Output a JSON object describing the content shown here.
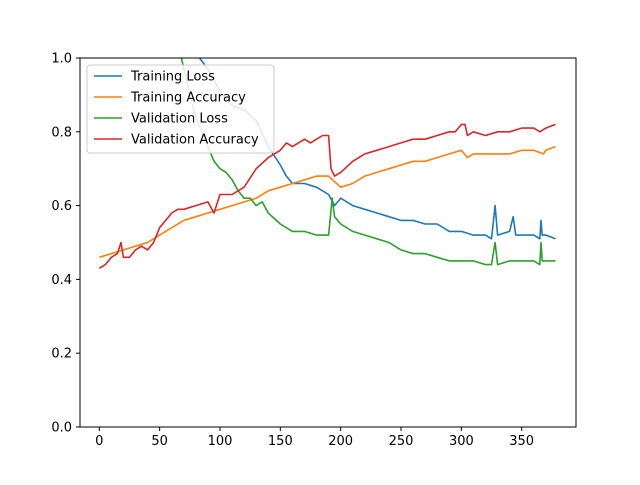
{
  "chart_data": {
    "type": "line",
    "title": "",
    "xlabel": "",
    "ylabel": "",
    "xlim": [
      -16,
      395
    ],
    "ylim": [
      0.0,
      1.0
    ],
    "xticks": [
      0,
      50,
      100,
      150,
      200,
      250,
      300,
      350
    ],
    "yticks": [
      0.0,
      0.2,
      0.4,
      0.6,
      0.8,
      1.0
    ],
    "xtick_labels": [
      "0",
      "50",
      "100",
      "150",
      "200",
      "250",
      "300",
      "350"
    ],
    "ytick_labels": [
      "0.0",
      "0.2",
      "0.4",
      "0.6",
      "0.8",
      "1.0"
    ],
    "grid": false,
    "legend_position": "upper-left",
    "series": [
      {
        "name": "Training Loss",
        "color": "#1f77b4",
        "x": [
          83,
          90,
          100,
          110,
          120,
          130,
          140,
          150,
          155,
          160,
          170,
          180,
          190,
          195,
          200,
          210,
          220,
          230,
          240,
          250,
          260,
          270,
          280,
          290,
          300,
          310,
          320,
          325,
          328,
          330,
          340,
          343,
          345,
          350,
          360,
          365,
          366,
          367,
          370,
          378
        ],
        "y": [
          1.0,
          0.97,
          0.91,
          0.87,
          0.86,
          0.83,
          0.76,
          0.71,
          0.68,
          0.66,
          0.66,
          0.65,
          0.63,
          0.6,
          0.62,
          0.6,
          0.59,
          0.58,
          0.57,
          0.56,
          0.56,
          0.55,
          0.55,
          0.53,
          0.53,
          0.52,
          0.52,
          0.51,
          0.6,
          0.52,
          0.53,
          0.57,
          0.52,
          0.52,
          0.52,
          0.51,
          0.56,
          0.52,
          0.52,
          0.51
        ]
      },
      {
        "name": "Training Accuracy",
        "color": "#ff7f0e",
        "x": [
          0,
          10,
          20,
          30,
          40,
          50,
          60,
          70,
          80,
          90,
          100,
          110,
          120,
          130,
          140,
          150,
          160,
          170,
          180,
          190,
          200,
          210,
          220,
          230,
          240,
          250,
          260,
          270,
          280,
          290,
          300,
          305,
          310,
          320,
          330,
          340,
          350,
          360,
          368,
          370,
          378
        ],
        "y": [
          0.46,
          0.47,
          0.48,
          0.49,
          0.5,
          0.52,
          0.54,
          0.56,
          0.57,
          0.58,
          0.59,
          0.6,
          0.61,
          0.62,
          0.64,
          0.65,
          0.66,
          0.67,
          0.68,
          0.68,
          0.65,
          0.66,
          0.68,
          0.69,
          0.7,
          0.71,
          0.72,
          0.72,
          0.73,
          0.74,
          0.75,
          0.73,
          0.74,
          0.74,
          0.74,
          0.74,
          0.75,
          0.75,
          0.74,
          0.75,
          0.76
        ]
      },
      {
        "name": "Validation Loss",
        "color": "#2ca02c",
        "x": [
          68,
          75,
          80,
          85,
          90,
          95,
          100,
          105,
          110,
          115,
          120,
          125,
          130,
          135,
          140,
          150,
          160,
          170,
          180,
          190,
          193,
          195,
          200,
          210,
          220,
          230,
          240,
          250,
          260,
          270,
          280,
          290,
          300,
          310,
          320,
          325,
          328,
          330,
          340,
          350,
          360,
          365,
          366,
          367,
          370,
          378
        ],
        "y": [
          1.0,
          0.9,
          0.84,
          0.8,
          0.76,
          0.72,
          0.7,
          0.69,
          0.67,
          0.64,
          0.62,
          0.62,
          0.6,
          0.61,
          0.58,
          0.55,
          0.53,
          0.53,
          0.52,
          0.52,
          0.62,
          0.57,
          0.55,
          0.53,
          0.52,
          0.51,
          0.5,
          0.48,
          0.47,
          0.47,
          0.46,
          0.45,
          0.45,
          0.45,
          0.44,
          0.44,
          0.5,
          0.44,
          0.45,
          0.45,
          0.45,
          0.44,
          0.5,
          0.45,
          0.45,
          0.45
        ]
      },
      {
        "name": "Validation Accuracy",
        "color": "#d62728",
        "x": [
          0,
          5,
          10,
          15,
          18,
          20,
          25,
          30,
          35,
          40,
          45,
          50,
          55,
          60,
          65,
          70,
          80,
          90,
          95,
          100,
          110,
          120,
          130,
          140,
          145,
          150,
          155,
          160,
          165,
          170,
          175,
          180,
          185,
          190,
          192,
          195,
          200,
          210,
          220,
          230,
          240,
          250,
          260,
          270,
          280,
          290,
          295,
          300,
          303,
          305,
          310,
          320,
          330,
          340,
          350,
          360,
          365,
          370,
          378
        ],
        "y": [
          0.43,
          0.44,
          0.46,
          0.47,
          0.5,
          0.46,
          0.46,
          0.48,
          0.49,
          0.48,
          0.5,
          0.54,
          0.56,
          0.58,
          0.59,
          0.59,
          0.6,
          0.61,
          0.58,
          0.63,
          0.63,
          0.65,
          0.7,
          0.73,
          0.74,
          0.75,
          0.77,
          0.76,
          0.77,
          0.78,
          0.77,
          0.78,
          0.79,
          0.79,
          0.7,
          0.68,
          0.69,
          0.72,
          0.74,
          0.75,
          0.76,
          0.77,
          0.78,
          0.78,
          0.79,
          0.8,
          0.8,
          0.82,
          0.82,
          0.79,
          0.8,
          0.79,
          0.8,
          0.8,
          0.81,
          0.81,
          0.8,
          0.81,
          0.82
        ]
      }
    ]
  }
}
